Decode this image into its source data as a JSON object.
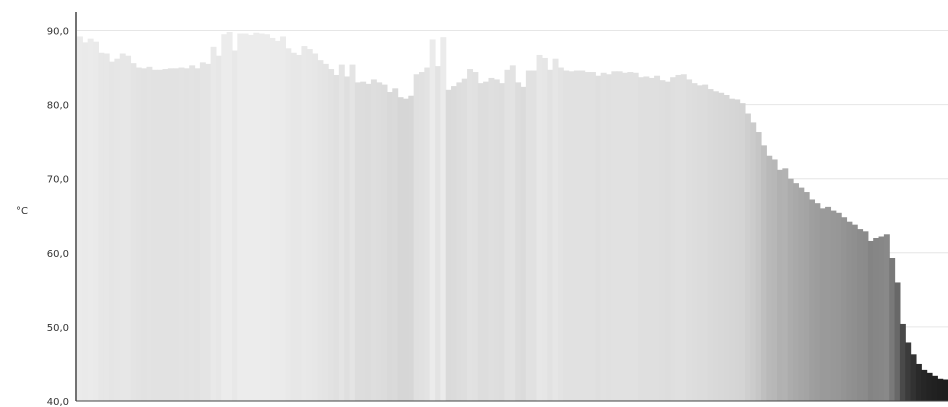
{
  "chart_data": {
    "type": "bar",
    "title": "",
    "xlabel": "",
    "ylabel": "°C",
    "ylim": [
      40,
      92.5
    ],
    "yticks": [
      "40,0",
      "50,0",
      "60,0",
      "70,0",
      "80,0",
      "90,0"
    ],
    "ytick_values": [
      40,
      50,
      60,
      70,
      80,
      90
    ],
    "grid": true,
    "legend": "none",
    "bar_color_scale": {
      "light": "#ececec",
      "dark": "#1e1e1e"
    },
    "values": [
      89.2,
      88.4,
      88.9,
      88.5,
      87.0,
      86.9,
      85.8,
      86.2,
      86.9,
      86.6,
      85.6,
      85.0,
      84.9,
      85.1,
      84.7,
      84.7,
      84.8,
      84.9,
      84.9,
      85.0,
      84.9,
      85.3,
      84.9,
      85.7,
      85.5,
      87.8,
      86.6,
      89.5,
      89.8,
      87.3,
      89.6,
      89.6,
      89.4,
      89.7,
      89.6,
      89.5,
      89.0,
      88.6,
      89.2,
      87.6,
      87.0,
      86.7,
      87.9,
      87.5,
      86.9,
      86.0,
      85.5,
      84.8,
      84.0,
      85.4,
      83.8,
      85.4,
      83.0,
      83.1,
      82.8,
      83.4,
      83.0,
      82.7,
      81.7,
      82.2,
      81.0,
      80.8,
      81.2,
      84.1,
      84.4,
      85.0,
      88.8,
      85.2,
      89.1,
      82.0,
      82.5,
      83.0,
      83.5,
      84.8,
      84.4,
      82.9,
      83.1,
      83.6,
      83.4,
      82.9,
      84.7,
      85.3,
      83.0,
      82.4,
      84.6,
      84.6,
      86.7,
      86.3,
      84.7,
      86.2,
      85.0,
      84.6,
      84.5,
      84.6,
      84.6,
      84.4,
      84.4,
      83.9,
      84.3,
      84.1,
      84.5,
      84.5,
      84.3,
      84.4,
      84.3,
      83.7,
      83.8,
      83.6,
      83.9,
      83.3,
      83.1,
      83.7,
      84.0,
      84.1,
      83.4,
      82.9,
      82.6,
      82.7,
      82.1,
      81.8,
      81.6,
      81.3,
      80.8,
      80.7,
      80.2,
      78.8,
      77.6,
      76.3,
      74.5,
      73.1,
      72.6,
      71.2,
      71.4,
      70.0,
      69.4,
      68.8,
      68.2,
      67.2,
      66.7,
      66.0,
      66.2,
      65.7,
      65.4,
      64.8,
      64.2,
      63.8,
      63.2,
      62.9,
      61.6,
      62.0,
      62.2,
      62.5,
      59.3,
      56.0,
      50.4,
      47.9,
      46.3,
      45.0,
      44.2,
      43.8,
      43.4,
      43.0,
      42.9
    ]
  }
}
